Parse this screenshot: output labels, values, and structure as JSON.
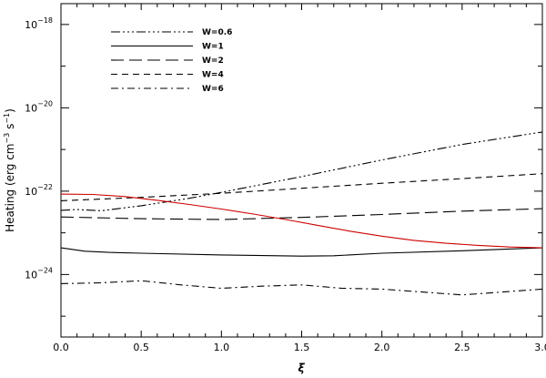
{
  "chart_data": {
    "type": "line",
    "xlabel": "ξ",
    "ylabel": "Heating (erg cm",
    "ylabel_sup1": "−3",
    "ylabel_mid": " s",
    "ylabel_sup2": "−1",
    "ylabel_end": ")",
    "xlim": [
      0.0,
      3.0
    ],
    "ylim_log10": [
      -25.5,
      -17.5
    ],
    "yscale": "log",
    "x_ticks": [
      "0.0",
      "0.5",
      "1.0",
      "1.5",
      "2.0",
      "2.5",
      "3.0"
    ],
    "y_ticks": [
      {
        "exp": -18,
        "base": "10",
        "sup": "−18"
      },
      {
        "exp": -20,
        "base": "10",
        "sup": "−20"
      },
      {
        "exp": -22,
        "base": "10",
        "sup": "−22"
      },
      {
        "exp": -24,
        "base": "10",
        "sup": "−24"
      }
    ],
    "legend_position": "top-left",
    "series": [
      {
        "name": "W=0.6",
        "dash": "dash-dot-dot-dot",
        "color": "#000000",
        "x": [
          0.0,
          0.1,
          0.25,
          0.5,
          0.8,
          1.0,
          1.5,
          2.0,
          2.5,
          3.0
        ],
        "log10_y": [
          -22.46,
          -22.44,
          -22.47,
          -22.35,
          -22.17,
          -22.03,
          -21.65,
          -21.25,
          -20.88,
          -20.58
        ]
      },
      {
        "name": "W=1",
        "dash": "solid",
        "color": "#000000",
        "x": [
          0.0,
          0.15,
          0.3,
          0.5,
          1.0,
          1.5,
          1.7,
          2.0,
          2.5,
          3.0
        ],
        "log10_y": [
          -23.36,
          -23.44,
          -23.47,
          -23.49,
          -23.53,
          -23.56,
          -23.55,
          -23.49,
          -23.43,
          -23.36
        ]
      },
      {
        "name": "W=2",
        "dash": "long-dash",
        "color": "#000000",
        "x": [
          0.0,
          0.5,
          1.0,
          1.5,
          2.0,
          2.5,
          3.0
        ],
        "log10_y": [
          -22.62,
          -22.66,
          -22.68,
          -22.63,
          -22.56,
          -22.48,
          -22.42
        ]
      },
      {
        "name": "W=4",
        "dash": "dash",
        "color": "#000000",
        "x": [
          0.0,
          0.5,
          1.0,
          1.5,
          2.0,
          2.5,
          3.0
        ],
        "log10_y": [
          -22.23,
          -22.15,
          -22.05,
          -21.93,
          -21.81,
          -21.7,
          -21.58
        ]
      },
      {
        "name": "W=6",
        "dash": "dash-dot",
        "color": "#000000",
        "x": [
          0.0,
          0.25,
          0.5,
          0.75,
          1.0,
          1.25,
          1.5,
          1.75,
          2.0,
          2.25,
          2.5,
          2.75,
          3.0
        ],
        "log10_y": [
          -24.22,
          -24.2,
          -24.15,
          -24.25,
          -24.33,
          -24.28,
          -24.25,
          -24.33,
          -24.35,
          -24.42,
          -24.49,
          -24.42,
          -24.35
        ]
      },
      {
        "name": "",
        "dash": "solid",
        "color": "#cc0000",
        "x": [
          0.0,
          0.2,
          0.4,
          0.6,
          0.8,
          1.0,
          1.2,
          1.4,
          1.6,
          1.8,
          2.0,
          2.2,
          2.4,
          2.6,
          2.8,
          3.0
        ],
        "log10_y": [
          -22.07,
          -22.08,
          -22.13,
          -22.22,
          -22.32,
          -22.43,
          -22.55,
          -22.68,
          -22.82,
          -22.96,
          -23.08,
          -23.18,
          -23.25,
          -23.3,
          -23.34,
          -23.36
        ]
      }
    ]
  }
}
